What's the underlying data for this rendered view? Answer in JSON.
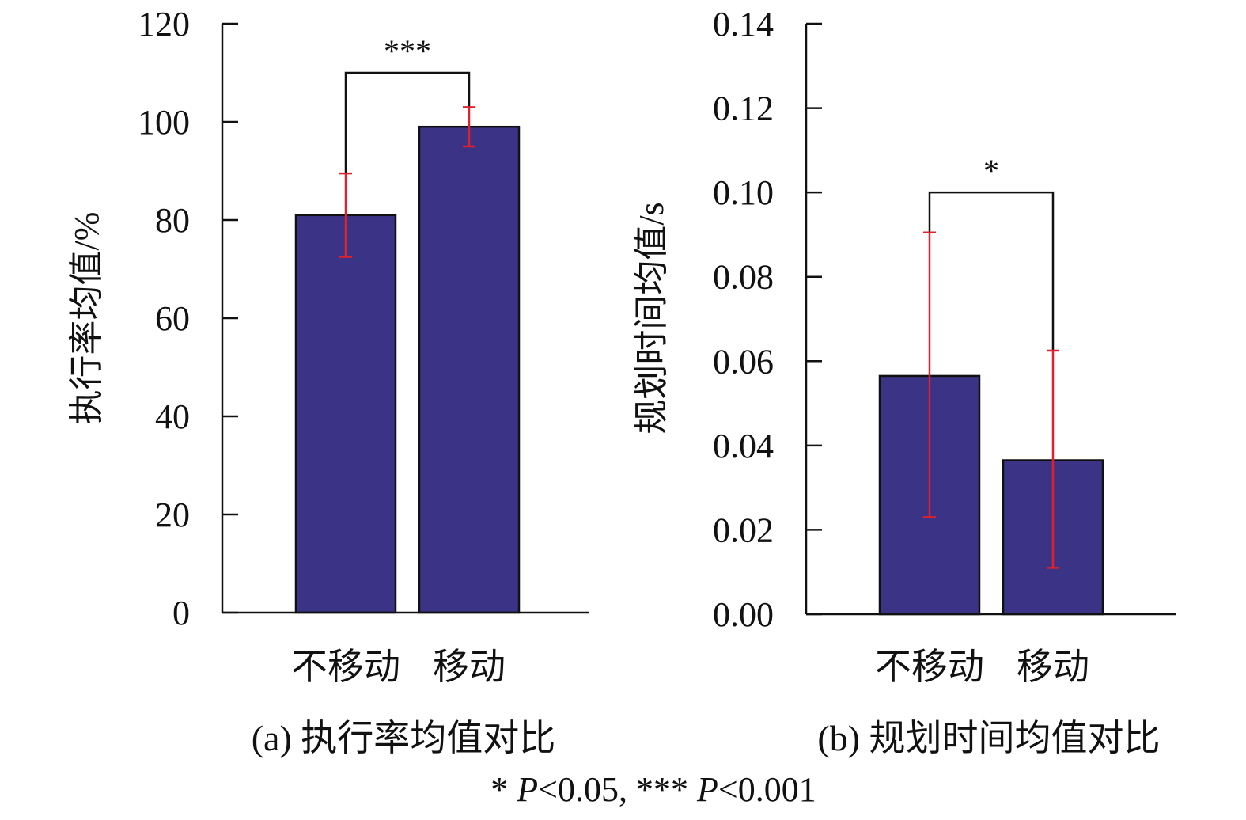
{
  "colors": {
    "bar_fill": "#3b3385",
    "bar_stroke": "#111111",
    "error_bar": "#e0202a",
    "axis": "#111111"
  },
  "chart_data": [
    {
      "type": "bar",
      "panel": "a",
      "title": "(a) 执行率均值对比",
      "xlabel": "",
      "ylabel": "执行率均值/%",
      "categories": [
        "不移动",
        "移动"
      ],
      "values": [
        81,
        99
      ],
      "error_low": [
        72.5,
        95
      ],
      "error_high": [
        89.5,
        103
      ],
      "ylim": [
        0,
        120
      ],
      "yticks": [
        0,
        20,
        40,
        60,
        80,
        100,
        120
      ],
      "ytick_labels": [
        "0",
        "20",
        "40",
        "60",
        "80",
        "100",
        "120"
      ],
      "significance": {
        "label": "***",
        "pair": [
          0,
          1
        ],
        "bracket_level": 110
      },
      "grid": false
    },
    {
      "type": "bar",
      "panel": "b",
      "title": "(b) 规划时间均值对比",
      "xlabel": "",
      "ylabel": "规划时间均值/s",
      "categories": [
        "不移动",
        "移动"
      ],
      "values": [
        0.0565,
        0.0365
      ],
      "error_low": [
        0.023,
        0.011
      ],
      "error_high": [
        0.0905,
        0.0625
      ],
      "ylim": [
        0,
        0.14
      ],
      "yticks": [
        0,
        0.02,
        0.04,
        0.06,
        0.08,
        0.1,
        0.12,
        0.14
      ],
      "ytick_labels": [
        "0.00",
        "0.02",
        "0.04",
        "0.06",
        "0.08",
        "0.10",
        "0.12",
        "0.14"
      ],
      "significance": {
        "label": "*",
        "pair": [
          0,
          1
        ],
        "bracket_level": 0.1
      },
      "grid": false
    }
  ],
  "footnote": {
    "part1": "* ",
    "p1": "P",
    "part2": "<0.05, *** ",
    "p2": "P",
    "part3": "<0.001"
  }
}
